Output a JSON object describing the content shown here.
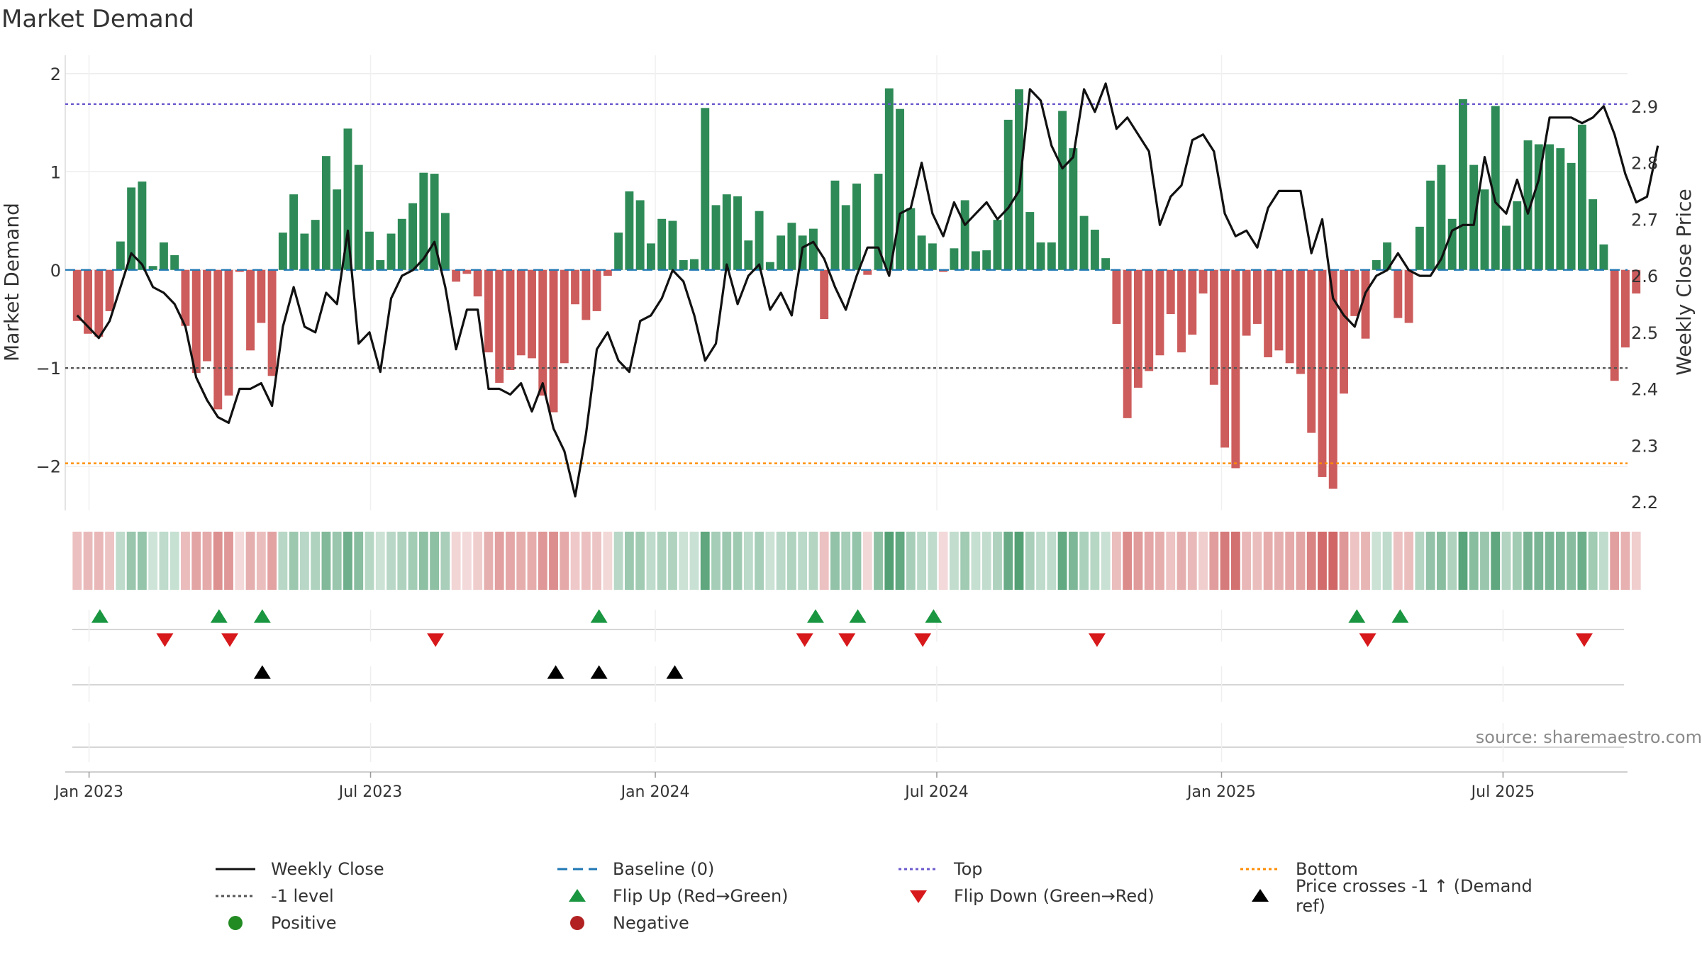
{
  "title": "Market Demand",
  "source": "source: sharemaestro.com",
  "colors": {
    "pos": "#2e8b57",
    "neg": "#cd5c5c",
    "close": "#111111",
    "baseline": "#1f77b4",
    "top": "#6a5acd",
    "level": "#555555",
    "bottom": "#ff8c00",
    "flip_up": "#1a9641",
    "flip_down": "#d7191c",
    "cross": "#000000",
    "pos_dot": "#228b22",
    "neg_dot": "#b22222"
  },
  "chart_data": {
    "type": "bar",
    "title": "Market Demand",
    "ylabel": "Market Demand",
    "y2label": "Weekly Close Price",
    "ylim": [
      -2.45,
      2.1
    ],
    "y2lim": [
      2.185,
      2.975
    ],
    "yticks": [
      2,
      1,
      0,
      -1,
      -2
    ],
    "yticklabels": [
      "2",
      "1",
      "0",
      "−1",
      "−2"
    ],
    "y2ticks": [
      2.9,
      2.8,
      2.7,
      2.6,
      2.5,
      2.4,
      2.3,
      2.2
    ],
    "y2ticklabels": [
      "2.9",
      "2.8",
      "2.7",
      "2.6",
      "2.5",
      "2.4",
      "2.3",
      "2.2"
    ],
    "x_range_weeks": [
      -1.1,
      143.2
    ],
    "xticks": [
      {
        "label": "Jan 2023",
        "week": 1.1
      },
      {
        "label": "Jul 2023",
        "week": 27.1
      },
      {
        "label": "Jan 2024",
        "week": 53.4
      },
      {
        "label": "Jul 2024",
        "week": 79.4
      },
      {
        "label": "Jan 2025",
        "week": 105.7
      },
      {
        "label": "Jul 2025",
        "week": 131.7
      }
    ],
    "reference_lines": {
      "top": 1.69,
      "minus_one": -1.0,
      "bottom": -1.97,
      "baseline": 0
    },
    "demand": [
      -0.52,
      -0.65,
      -0.68,
      -0.42,
      0.29,
      0.84,
      0.9,
      0.04,
      0.28,
      0.15,
      -0.57,
      -1.05,
      -0.93,
      -1.42,
      -1.28,
      -0.02,
      -0.82,
      -0.54,
      -1.08,
      0.38,
      0.77,
      0.37,
      0.51,
      1.16,
      0.82,
      1.44,
      1.07,
      0.39,
      0.1,
      0.37,
      0.52,
      0.68,
      0.99,
      0.98,
      0.58,
      -0.12,
      -0.04,
      -0.27,
      -0.84,
      -1.15,
      -1.02,
      -0.87,
      -0.9,
      -1.28,
      -1.45,
      -0.95,
      -0.35,
      -0.51,
      -0.42,
      -0.06,
      0.38,
      0.8,
      0.71,
      0.27,
      0.52,
      0.5,
      0.1,
      0.11,
      1.65,
      0.66,
      0.77,
      0.75,
      0.3,
      0.6,
      0.08,
      0.35,
      0.48,
      0.35,
      0.42,
      -0.5,
      0.91,
      0.66,
      0.88,
      -0.05,
      0.98,
      1.85,
      1.64,
      0.63,
      0.35,
      0.27,
      -0.02,
      0.22,
      0.71,
      0.19,
      0.2,
      0.51,
      1.53,
      1.84,
      0.59,
      0.28,
      0.28,
      1.62,
      1.24,
      0.55,
      0.41,
      0.12,
      -0.55,
      -1.51,
      -1.2,
      -1.03,
      -0.87,
      -0.45,
      -0.84,
      -0.66,
      -0.24,
      -1.17,
      -1.81,
      -2.02,
      -0.67,
      -0.55,
      -0.89,
      -0.82,
      -0.95,
      -1.06,
      -1.66,
      -2.11,
      -2.23,
      -1.26,
      -0.47,
      -0.7,
      0.1,
      0.28,
      -0.49,
      -0.54,
      0.44,
      0.91,
      1.07,
      0.52,
      1.74,
      1.07,
      0.82,
      1.67,
      0.45,
      0.7,
      1.32,
      1.28,
      1.28,
      1.24,
      1.09,
      1.48,
      0.72,
      0.26,
      -1.13,
      -0.79,
      -0.24
    ],
    "weekly_close": [
      2.53,
      2.51,
      2.49,
      2.52,
      2.58,
      2.64,
      2.62,
      2.58,
      2.57,
      2.55,
      2.51,
      2.42,
      2.38,
      2.35,
      2.34,
      2.4,
      2.4,
      2.41,
      2.37,
      2.51,
      2.58,
      2.51,
      2.5,
      2.57,
      2.55,
      2.68,
      2.48,
      2.5,
      2.43,
      2.56,
      2.6,
      2.61,
      2.63,
      2.66,
      2.58,
      2.47,
      2.54,
      2.54,
      2.4,
      2.4,
      2.39,
      2.41,
      2.36,
      2.41,
      2.33,
      2.29,
      2.21,
      2.32,
      2.47,
      2.5,
      2.45,
      2.43,
      2.52,
      2.53,
      2.56,
      2.61,
      2.59,
      2.53,
      2.45,
      2.48,
      2.62,
      2.55,
      2.6,
      2.62,
      2.54,
      2.57,
      2.53,
      2.65,
      2.66,
      2.63,
      2.58,
      2.54,
      2.6,
      2.65,
      2.65,
      2.6,
      2.71,
      2.72,
      2.8,
      2.71,
      2.67,
      2.73,
      2.69,
      2.71,
      2.73,
      2.7,
      2.72,
      2.75,
      2.93,
      2.91,
      2.83,
      2.79,
      2.81,
      2.93,
      2.89,
      2.94,
      2.86,
      2.88,
      2.85,
      2.82,
      2.69,
      2.74,
      2.76,
      2.84,
      2.85,
      2.82,
      2.71,
      2.67,
      2.68,
      2.65,
      2.72,
      2.75,
      2.75,
      2.75,
      2.64,
      2.7,
      2.56,
      2.53,
      2.51,
      2.57,
      2.6,
      2.61,
      2.64,
      2.61,
      2.6,
      2.6,
      2.63,
      2.68,
      2.69,
      2.69,
      2.81,
      2.73,
      2.71,
      2.77,
      2.71,
      2.77,
      2.88,
      2.88,
      2.88,
      2.87,
      2.88,
      2.9,
      2.85,
      2.78,
      2.73,
      2.74,
      2.83
    ],
    "flip_up_weeks": [
      2.1,
      13.1,
      17.1,
      48.2,
      68.2,
      72.1,
      79.1,
      118.2,
      122.2
    ],
    "flip_down_weeks": [
      8.1,
      14.1,
      33.1,
      67.2,
      71.1,
      78.1,
      94.2,
      119.2,
      139.2
    ],
    "price_crosses_weeks": [
      17.1,
      44.2,
      48.2,
      55.2
    ],
    "legend": [
      {
        "label": "Weekly Close",
        "symbol": "line",
        "color": "#111111"
      },
      {
        "label": "Baseline (0)",
        "symbol": "dashed",
        "color": "#1f77b4"
      },
      {
        "label": "Top",
        "symbol": "dotted",
        "color": "#6a5acd"
      },
      {
        "label": "Bottom",
        "symbol": "dotted",
        "color": "#ff8c00"
      },
      {
        "label": "-1 level",
        "symbol": "dotted",
        "color": "#555555"
      },
      {
        "label": "Flip Up (Red→Green)",
        "symbol": "tri-up",
        "color": "#1a9641"
      },
      {
        "label": "Flip Down (Green→Red)",
        "symbol": "tri-down",
        "color": "#d7191c"
      },
      {
        "label": "Price crosses -1 ↑ (Demand ref)",
        "symbol": "tri-up",
        "color": "#000000"
      },
      {
        "label": "Positive",
        "symbol": "dot",
        "color": "#228b22"
      },
      {
        "label": "Negative",
        "symbol": "dot",
        "color": "#b22222"
      }
    ]
  }
}
